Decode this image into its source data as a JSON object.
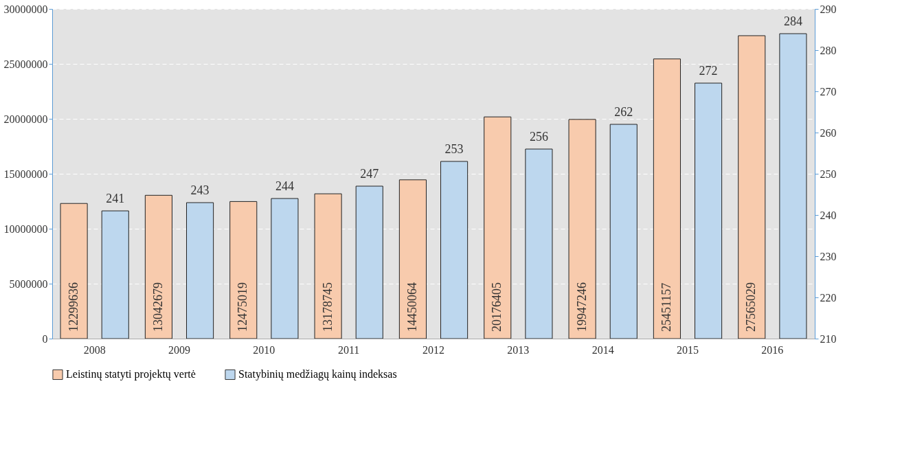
{
  "chart_data": {
    "type": "bar",
    "categories": [
      "2008",
      "2009",
      "2010",
      "2011",
      "2012",
      "2013",
      "2014",
      "2015",
      "2016"
    ],
    "series": [
      {
        "name": "Leistinų statyti projektų vertė",
        "color": "#f8cbad",
        "values": [
          12299636,
          13042679,
          12475019,
          13178745,
          14450064,
          20176405,
          19947246,
          25451157,
          27565029
        ]
      },
      {
        "name": "Statybinių medžiagų kainų indeksas",
        "color": "#bdd7ee",
        "axis": "y2",
        "values": [
          241,
          243,
          244,
          247,
          253,
          256,
          262,
          272,
          284
        ]
      }
    ],
    "ylim": [
      0,
      30000000
    ],
    "yticks": [
      0,
      5000000,
      10000000,
      15000000,
      20000000,
      25000000,
      30000000
    ],
    "y2lim": [
      210,
      290
    ],
    "y2ticks": [
      210,
      220,
      230,
      240,
      250,
      260,
      270,
      280,
      290
    ],
    "grid": "y",
    "legend": "bottom",
    "data_labels": true
  }
}
